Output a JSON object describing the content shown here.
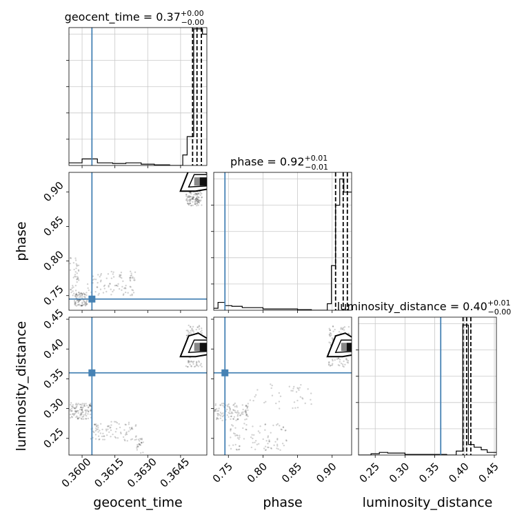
{
  "figure": {
    "type": "corner-plot"
  },
  "chart_data": {
    "type": "corner",
    "parameters": [
      "geocent_time",
      "phase",
      "luminosity_distance"
    ],
    "injection": {
      "geocent_time": 0.36045,
      "phase": 0.745,
      "luminosity_distance": 0.36,
      "color": "#4682b4"
    },
    "diagonal": [
      {
        "param": "geocent_time",
        "title_main": "geocent_time = 0.37",
        "title_sup": "+0.00",
        "title_sub": "−0.00",
        "xlim": [
          0.3594,
          0.3657
        ],
        "ymax": 1.05,
        "hist_x": [
          0.3594,
          0.36,
          0.3607,
          0.3614,
          0.362,
          0.3627,
          0.3633,
          0.364,
          0.3646,
          0.3648,
          0.3651,
          0.3655,
          0.3657
        ],
        "hist_y": [
          0.02,
          0.05,
          0.02,
          0.015,
          0.02,
          0.01,
          0.005,
          0.0,
          0.08,
          0.22,
          1.04,
          1.0
        ],
        "quantiles": [
          0.36505,
          0.36525,
          0.36545
        ]
      },
      {
        "param": "phase",
        "title_main": "phase = 0.92",
        "title_sup": "+0.01",
        "title_sub": "−0.01",
        "xlim": [
          0.7288,
          0.9282
        ],
        "ymax": 1.05,
        "hist_x": [
          0.7288,
          0.735,
          0.745,
          0.755,
          0.77,
          0.8,
          0.85,
          0.87,
          0.893,
          0.899,
          0.905,
          0.911,
          0.917,
          0.9282
        ],
        "hist_y": [
          0.015,
          0.06,
          0.035,
          0.03,
          0.02,
          0.01,
          0.005,
          0.0,
          0.05,
          0.34,
          0.8,
          1.0,
          0.9
        ],
        "quantiles": [
          0.905,
          0.916,
          0.922
        ]
      },
      {
        "param": "luminosity_distance",
        "title_main": "luminosity_distance = 0.40",
        "title_sup": "+0.01",
        "title_sub": "−0.00",
        "xlim": [
          0.222,
          0.4535
        ],
        "ymax": 1.05,
        "hist_x": [
          0.222,
          0.243,
          0.257,
          0.271,
          0.3,
          0.37,
          0.386,
          0.397,
          0.4065,
          0.416,
          0.428,
          0.438,
          0.4535
        ],
        "hist_y": [
          0.0,
          0.01,
          0.02,
          0.015,
          0.005,
          0.0,
          0.03,
          0.99,
          0.08,
          0.06,
          0.04,
          0.02
        ],
        "quantiles": [
          0.3975,
          0.4035,
          0.4105
        ]
      }
    ],
    "ylims": {
      "phase": [
        0.7288,
        0.9282
      ],
      "luminosity_distance": [
        0.222,
        0.4535
      ]
    },
    "ticks": {
      "geocent_time": {
        "values": [
          0.36,
          0.3615,
          0.363,
          0.3645
        ],
        "labels": [
          "0.3600",
          "0.3615",
          "0.3630",
          "0.3645"
        ]
      },
      "phase": {
        "values": [
          0.75,
          0.8,
          0.85,
          0.9
        ],
        "labels": [
          "0.75",
          "0.80",
          "0.85",
          "0.90"
        ]
      },
      "luminosity_distance": {
        "values": [
          0.25,
          0.3,
          0.35,
          0.4,
          0.45
        ],
        "labels": [
          "0.25",
          "0.30",
          "0.35",
          "0.40",
          "0.45"
        ]
      }
    },
    "axis_labels": {
      "geocent_time": "geocent_time",
      "phase": "phase",
      "luminosity_distance": "luminosity_distance"
    },
    "scatter_panels": [
      {
        "x": "geocent_time",
        "y": "phase",
        "point_clusters": [
          {
            "x": [
              0.36475,
              0.36548
            ],
            "y": [
              0.88,
              0.905
            ],
            "n": 140
          },
          {
            "x": [
              0.35945,
              0.35985
            ],
            "y": [
              0.75,
              0.805
            ],
            "n": 40
          },
          {
            "x": [
              0.35965,
              0.36025
            ],
            "y": [
              0.735,
              0.755
            ],
            "n": 90
          },
          {
            "x": [
              0.36025,
              0.36245
            ],
            "y": [
              0.75,
              0.785
            ],
            "n": 90
          }
        ],
        "dense_core": {
          "x": 0.3655,
          "y": 0.915,
          "contour_hint": true
        }
      },
      {
        "x": "phase",
        "y": "luminosity_distance",
        "point_clusters": [
          {
            "x": [
              0.895,
              0.925
            ],
            "y": [
              0.37,
              0.44
            ],
            "n": 120
          },
          {
            "x": [
              0.73,
              0.78
            ],
            "y": [
              0.28,
              0.31
            ],
            "n": 110
          },
          {
            "x": [
              0.75,
              0.835
            ],
            "y": [
              0.23,
              0.275
            ],
            "n": 90
          },
          {
            "x": [
              0.78,
              0.87
            ],
            "y": [
              0.3,
              0.345
            ],
            "n": 40
          }
        ],
        "dense_core": {
          "x": 0.925,
          "y": 0.4035,
          "contour_hint": true
        }
      },
      {
        "x": "geocent_time",
        "y": "luminosity_distance",
        "point_clusters": [
          {
            "x": [
              0.36475,
              0.36548
            ],
            "y": [
              0.37,
              0.44
            ],
            "n": 120
          },
          {
            "x": [
              0.35945,
              0.36045
            ],
            "y": [
              0.282,
              0.31
            ],
            "n": 110
          },
          {
            "x": [
              0.3604,
              0.3625
            ],
            "y": [
              0.245,
              0.278
            ],
            "n": 90
          },
          {
            "x": [
              0.3625,
              0.3628
            ],
            "y": [
              0.22,
              0.25
            ],
            "n": 25
          }
        ],
        "dense_core": {
          "x": 0.3655,
          "y": 0.4035,
          "contour_hint": true
        }
      }
    ]
  }
}
